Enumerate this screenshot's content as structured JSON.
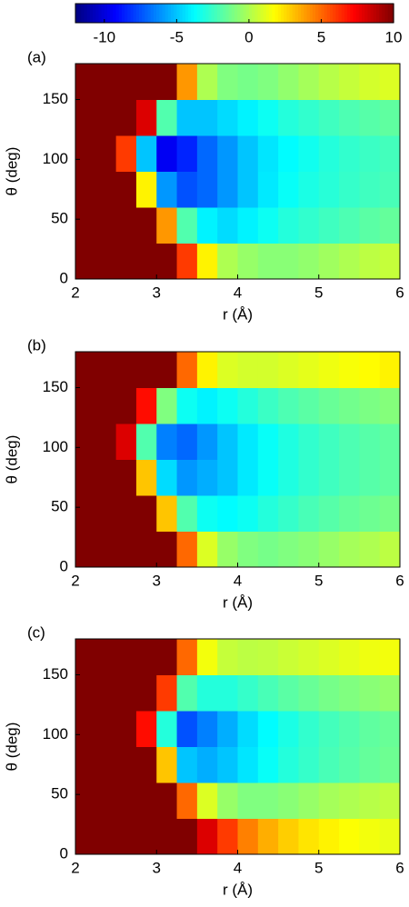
{
  "chart_data": [
    {
      "type": "colorbar",
      "colormap": "jet",
      "lim": [
        -12,
        10
      ],
      "ticks": [
        -10,
        -5,
        0,
        5,
        10
      ]
    },
    {
      "type": "heatmap",
      "label": "(a)",
      "xlabel": "r (Å)",
      "ylabel": "θ (deg)",
      "colormap": "jet",
      "xlim": [
        2,
        6
      ],
      "ylim": [
        0,
        180
      ],
      "xticks": [
        2,
        3,
        4,
        5,
        6
      ],
      "yticks": [
        0,
        50,
        100,
        150
      ],
      "x": [
        2.125,
        2.375,
        2.625,
        2.875,
        3.125,
        3.375,
        3.625,
        3.875,
        4.125,
        4.375,
        4.625,
        4.875,
        5.125,
        5.375,
        5.625,
        5.875
      ],
      "y": [
        15,
        45,
        75,
        105,
        135,
        165
      ],
      "z": [
        [
          10,
          10,
          10,
          10,
          10,
          6,
          2,
          0,
          -0.5,
          -0.8,
          -0.8,
          -0.6,
          -0.3,
          0,
          0.3,
          0.5
        ],
        [
          10,
          10,
          10,
          10,
          4,
          -2,
          -4,
          -4.5,
          -4,
          -3.5,
          -3,
          -2.7,
          -2.4,
          -2.1,
          -1.8,
          -1.6
        ],
        [
          10,
          10,
          10,
          2,
          -6,
          -7.5,
          -7,
          -6,
          -5,
          -4.2,
          -3.6,
          -3.2,
          -2.9,
          -2.6,
          -2.4,
          -2.2
        ],
        [
          10,
          10,
          6,
          -5,
          -9.5,
          -8.5,
          -7,
          -6,
          -5,
          -4.3,
          -3.8,
          -3.4,
          -3,
          -2.7,
          -2.5,
          -2.3
        ],
        [
          10,
          10,
          10,
          8,
          -2,
          -5,
          -5,
          -4.5,
          -4,
          -3.5,
          -3,
          -2.7,
          -2.4,
          -2.1,
          -1.9,
          -1.7
        ],
        [
          10,
          10,
          10,
          10,
          10,
          4,
          0,
          -1,
          -1.2,
          -1,
          -0.6,
          -0.2,
          0.2,
          0.5,
          0.8,
          1
        ]
      ]
    },
    {
      "type": "heatmap",
      "label": "(b)",
      "xlabel": "r (Å)",
      "ylabel": "θ (deg)",
      "colormap": "jet",
      "xlim": [
        2,
        6
      ],
      "ylim": [
        0,
        180
      ],
      "xticks": [
        2,
        3,
        4,
        5,
        6
      ],
      "yticks": [
        0,
        50,
        100,
        150
      ],
      "x": [
        2.125,
        2.375,
        2.625,
        2.875,
        3.125,
        3.375,
        3.625,
        3.875,
        4.125,
        4.375,
        4.625,
        4.875,
        5.125,
        5.375,
        5.625,
        5.875
      ],
      "y": [
        15,
        45,
        75,
        105,
        135,
        165
      ],
      "z": [
        [
          10,
          10,
          10,
          10,
          10,
          5,
          1,
          -0.5,
          -1,
          -1.2,
          -1,
          -0.8,
          -0.5,
          -0.2,
          0,
          0.3
        ],
        [
          10,
          10,
          10,
          10,
          3,
          -2,
          -3.5,
          -3.8,
          -3.5,
          -3,
          -2.6,
          -2.2,
          -1.9,
          -1.6,
          -1.4,
          -1.2
        ],
        [
          10,
          10,
          10,
          3,
          -4.5,
          -6,
          -5.5,
          -5,
          -4.2,
          -3.6,
          -3.1,
          -2.7,
          -2.4,
          -2.1,
          -1.9,
          -1.7
        ],
        [
          10,
          10,
          8,
          -2,
          -6.5,
          -7,
          -6,
          -5,
          -4.2,
          -3.6,
          -3.1,
          -2.7,
          -2.4,
          -2.1,
          -1.9,
          -1.7
        ],
        [
          10,
          10,
          10,
          7,
          -1,
          -3.5,
          -4,
          -3.5,
          -3,
          -2.5,
          -2.1,
          -1.8,
          -1.5,
          -1.3,
          -1.1,
          -0.9
        ],
        [
          10,
          10,
          10,
          10,
          10,
          5,
          2,
          1,
          0.8,
          0.8,
          1,
          1.2,
          1.4,
          1.6,
          1.8,
          2
        ]
      ]
    },
    {
      "type": "heatmap",
      "label": "(c)",
      "xlabel": "r (Å)",
      "ylabel": "θ (deg)",
      "colormap": "jet",
      "xlim": [
        2,
        6
      ],
      "ylim": [
        0,
        180
      ],
      "xticks": [
        2,
        3,
        4,
        5,
        6
      ],
      "yticks": [
        0,
        50,
        100,
        150
      ],
      "x": [
        2.125,
        2.375,
        2.625,
        2.875,
        3.125,
        3.375,
        3.625,
        3.875,
        4.125,
        4.375,
        4.625,
        4.875,
        5.125,
        5.375,
        5.625,
        5.875
      ],
      "y": [
        15,
        45,
        75,
        105,
        135,
        165
      ],
      "z": [
        [
          10,
          10,
          10,
          10,
          10,
          10,
          8,
          6,
          4.5,
          3.5,
          2.8,
          2.3,
          2,
          1.7,
          1.5,
          1.3
        ],
        [
          10,
          10,
          10,
          10,
          10,
          5,
          1,
          -0.5,
          -1,
          -1,
          -0.8,
          -0.5,
          -0.2,
          0,
          0.2,
          0.4
        ],
        [
          10,
          10,
          10,
          10,
          3,
          -5,
          -5.5,
          -5,
          -4.3,
          -3.6,
          -3,
          -2.6,
          -2.2,
          -1.9,
          -1.6,
          -1.4
        ],
        [
          10,
          10,
          10,
          7,
          -3,
          -7.5,
          -6.5,
          -5.5,
          -4.5,
          -3.8,
          -3.2,
          -2.7,
          -2.3,
          -2,
          -1.7,
          -1.5
        ],
        [
          10,
          10,
          10,
          10,
          6,
          -2,
          -3,
          -3,
          -2.6,
          -2.2,
          -1.8,
          -1.5,
          -1.2,
          -1,
          -0.8,
          -0.6
        ],
        [
          10,
          10,
          10,
          10,
          10,
          5,
          1.5,
          0.5,
          0.3,
          0.4,
          0.6,
          0.8,
          1,
          1.2,
          1.4,
          1.5
        ]
      ]
    }
  ]
}
